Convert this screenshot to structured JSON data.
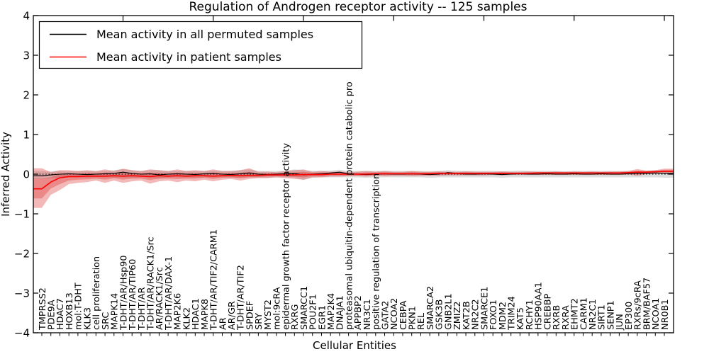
{
  "chart_data": {
    "type": "line",
    "title": "Regulation of Androgen receptor activity -- 125 samples",
    "xlabel": "Cellular Entities",
    "ylabel": "Inferred Activity",
    "ylim": [
      -4,
      4
    ],
    "yticks": [
      4,
      3,
      2,
      1,
      0,
      -1,
      -2,
      -3,
      -4
    ],
    "grid": false,
    "legend_position": "upper left",
    "zero_reference_line": "dotted black at y=0",
    "x_tick_label_style": "rotated 90deg, anchored inside plot above bottom axis",
    "categories": [
      "TMPRSS2",
      "PDE9A",
      "HDAC7",
      "HOXB13",
      "mol:T-DHT",
      "KLK3",
      "cell proliferation",
      "SRC",
      "MAPK14",
      "T-DHT/AR/Hsp90",
      "T-DHT/AR/TIP60",
      "T-DHT/AR",
      "T-DHT/AR/RACK1/Src",
      "AR/RACK1/Src",
      "T-DHT/AR/DAX-1",
      "MAP2K6",
      "KLK2",
      "HDAC1",
      "MAPK8",
      "T-DHT/AR/TIF2/CARM1",
      "AR",
      "AR/GR",
      "T-DHT/AR/TIF2",
      "SPDEF",
      "SRY",
      "MYST2",
      "mol:9cRA",
      "epidermal growth factor receptor activity",
      "RXRG",
      "SMARCC1",
      "POU2F1",
      "EGR1",
      "MAP2K4",
      "DNAJA1",
      "proteasomal ubiquitin-dependent protein catabolic pro",
      "APPBP2",
      "NR3C1",
      "positive regulation of transcription",
      "GATA2",
      "NCOA2",
      "CEBPA",
      "PKN1",
      "REL",
      "SMARCA2",
      "GSK3B",
      "GNB2L1",
      "ZMIZ2",
      "KAT2B",
      "NR2C2",
      "SMARCE1",
      "FOXO1",
      "MDM2",
      "TRIM24",
      "KAT5",
      "RCHY1",
      "HSP90AA1",
      "CREBBP",
      "RXRB",
      "RXRA",
      "EHMT2",
      "CARM1",
      "NR2C1",
      "SIRT1",
      "SENP1",
      "JUN",
      "EP300",
      "RXRs/9cRA",
      "BRM/BAF57",
      "NCOA1",
      "NR0B1"
    ],
    "series": [
      {
        "name": "Mean activity in all permuted samples",
        "color": "#000000",
        "values": [
          -0.04,
          -0.02,
          0,
          0.01,
          0,
          -0.01,
          0,
          0.01,
          0.02,
          0.05,
          0.02,
          0,
          0.01,
          -0.02,
          0,
          0.01,
          0,
          -0.01,
          0.01,
          0.02,
          0,
          -0.01,
          0.01,
          0.03,
          0,
          -0.01,
          0,
          0.01,
          0.02,
          -0.02,
          0,
          0.01,
          0.03,
          0.05,
          0.01,
          0,
          -0.01,
          0,
          0.01,
          0,
          0,
          0.01,
          0,
          -0.01,
          0,
          0.04,
          0.02,
          0,
          0,
          0.01,
          0,
          -0.01,
          0,
          0.01,
          0,
          0,
          0.01,
          0,
          0,
          0.01,
          0,
          0,
          0.01,
          0,
          0,
          0.01,
          0.02,
          0.02,
          0.03,
          0.02
        ]
      },
      {
        "name": "Mean activity in patient samples",
        "color": "#ff0000",
        "values": [
          -0.37,
          -0.2,
          -0.09,
          -0.06,
          -0.06,
          -0.05,
          -0.05,
          -0.05,
          -0.04,
          -0.05,
          -0.04,
          -0.05,
          -0.06,
          -0.04,
          -0.05,
          -0.04,
          -0.05,
          -0.04,
          -0.04,
          -0.05,
          -0.04,
          -0.03,
          -0.04,
          -0.03,
          -0.03,
          -0.02,
          -0.02,
          -0.02,
          -0.02,
          -0.01,
          -0.01,
          -0.01,
          0,
          0,
          0,
          0,
          0,
          0.01,
          0.01,
          0.01,
          0.01,
          0.01,
          0.01,
          0.01,
          0.02,
          0.02,
          0.02,
          0.02,
          0.02,
          0.02,
          0.02,
          0.02,
          0.02,
          0.02,
          0.02,
          0.03,
          0.03,
          0.03,
          0.03,
          0.03,
          0.03,
          0.03,
          0.03,
          0.03,
          0.03,
          0.04,
          0.05,
          0.05,
          0.06,
          0.07
        ]
      }
    ],
    "bands": [
      {
        "series": "Mean activity in all permuted samples",
        "color": "rgba(120,120,120,0.25)",
        "upper": [
          0.08,
          0.07,
          0.08,
          0.07,
          0.08,
          0.08,
          0.07,
          0.08,
          0.1,
          0.13,
          0.1,
          0.08,
          0.1,
          0.1,
          0.08,
          0.08,
          0.08,
          0.08,
          0.08,
          0.09,
          0.08,
          0.08,
          0.1,
          0.12,
          0.08,
          0.08,
          0.08,
          0.09,
          0.12,
          0.1,
          0.08,
          0.08,
          0.09,
          0.11,
          0.08,
          0.08,
          0.08,
          0.08,
          0.08,
          0.08,
          0.08,
          0.08,
          0.08,
          0.07,
          0.08,
          0.1,
          0.08,
          0.08,
          0.08,
          0.08,
          0.08,
          0.07,
          0.08,
          0.09,
          0.08,
          0.08,
          0.08,
          0.08,
          0.07,
          0.08,
          0.08,
          0.08,
          0.08,
          0.08,
          0.08,
          0.08,
          0.08,
          0.09,
          0.1,
          0.09
        ],
        "lower": [
          -0.12,
          -0.1,
          -0.09,
          -0.08,
          -0.08,
          -0.09,
          -0.08,
          -0.08,
          -0.09,
          -0.08,
          -0.09,
          -0.08,
          -0.09,
          -0.11,
          -0.08,
          -0.08,
          -0.08,
          -0.09,
          -0.08,
          -0.08,
          -0.08,
          -0.09,
          -0.09,
          -0.08,
          -0.09,
          -0.09,
          -0.08,
          -0.08,
          -0.09,
          -0.15,
          -0.09,
          -0.08,
          -0.08,
          -0.08,
          -0.08,
          -0.08,
          -0.09,
          -0.08,
          -0.08,
          -0.08,
          -0.08,
          -0.08,
          -0.08,
          -0.09,
          -0.08,
          -0.08,
          -0.08,
          -0.08,
          -0.08,
          -0.08,
          -0.08,
          -0.09,
          -0.08,
          -0.08,
          -0.08,
          -0.08,
          -0.08,
          -0.08,
          -0.08,
          -0.08,
          -0.08,
          -0.08,
          -0.08,
          -0.08,
          -0.08,
          -0.08,
          -0.08,
          -0.08,
          -0.08,
          -0.09
        ]
      },
      {
        "series": "Mean activity in patient samples",
        "color": "rgba(220,38,38,0.33)",
        "upper": [
          0.15,
          0.05,
          0.1,
          0.1,
          0.08,
          0.1,
          0.08,
          0.12,
          0.08,
          0.14,
          0.1,
          0.08,
          0.12,
          0.1,
          0.08,
          0.12,
          0.08,
          0.1,
          0.08,
          0.12,
          0.08,
          0.08,
          0.1,
          0.15,
          0.06,
          0.06,
          0.05,
          0.08,
          0.1,
          0.12,
          0.06,
          0.08,
          0.06,
          0.07,
          0.05,
          0.06,
          0.08,
          0.06,
          0.08,
          0.06,
          0.06,
          0.08,
          0.06,
          0.06,
          0.07,
          0.06,
          0.06,
          0.07,
          0.06,
          0.06,
          0.06,
          0.07,
          0.06,
          0.06,
          0.07,
          0.06,
          0.06,
          0.07,
          0.06,
          0.07,
          0.06,
          0.07,
          0.06,
          0.07,
          0.07,
          0.08,
          0.13,
          0.09,
          0.1,
          0.14
        ],
        "lower": [
          -0.85,
          -0.52,
          -0.4,
          -0.25,
          -0.22,
          -0.2,
          -0.16,
          -0.22,
          -0.16,
          -0.22,
          -0.18,
          -0.16,
          -0.24,
          -0.18,
          -0.16,
          -0.2,
          -0.16,
          -0.18,
          -0.14,
          -0.18,
          -0.14,
          -0.12,
          -0.16,
          -0.12,
          -0.1,
          -0.1,
          -0.08,
          -0.1,
          -0.12,
          -0.14,
          -0.08,
          -0.08,
          -0.06,
          -0.06,
          -0.05,
          -0.05,
          -0.06,
          -0.04,
          -0.05,
          -0.04,
          -0.04,
          -0.05,
          -0.04,
          -0.04,
          -0.04,
          -0.03,
          -0.03,
          -0.03,
          -0.03,
          -0.03,
          -0.02,
          -0.03,
          -0.02,
          -0.02,
          -0.02,
          -0.02,
          -0.02,
          -0.02,
          -0.02,
          -0.02,
          -0.02,
          -0.02,
          -0.02,
          -0.02,
          -0.02,
          -0.01,
          -0.04,
          0,
          0.01,
          0.02
        ],
        "inner_upper": [
          -0.11,
          -0.08,
          0,
          0.02,
          0.01,
          0.03,
          0.02,
          0.04,
          0.02,
          0.05,
          0.03,
          0.02,
          0.03,
          0.03,
          0.02,
          0.04,
          0.02,
          0.03,
          0.02,
          0.04,
          0.02,
          0.03,
          0.03,
          0.06,
          0.02,
          0.02,
          0.02,
          0.03,
          0.04,
          0.06,
          0.03,
          0.04,
          0.03,
          0.04,
          0.03,
          0.03,
          0.04,
          0.04,
          0.05,
          0.04,
          0.04,
          0.05,
          0.04,
          0.04,
          0.05,
          0.04,
          0.04,
          0.05,
          0.04,
          0.04,
          0.04,
          0.05,
          0.04,
          0.04,
          0.05,
          0.05,
          0.05,
          0.05,
          0.05,
          0.05,
          0.05,
          0.05,
          0.05,
          0.05,
          0.05,
          0.06,
          0.09,
          0.07,
          0.08,
          0.11
        ],
        "inner_lower": [
          -0.61,
          -0.36,
          -0.25,
          -0.16,
          -0.14,
          -0.13,
          -0.11,
          -0.14,
          -0.1,
          -0.14,
          -0.11,
          -0.11,
          -0.15,
          -0.11,
          -0.11,
          -0.12,
          -0.11,
          -0.11,
          -0.09,
          -0.12,
          -0.09,
          -0.08,
          -0.1,
          -0.08,
          -0.07,
          -0.06,
          -0.05,
          -0.06,
          -0.07,
          -0.08,
          -0.05,
          -0.05,
          -0.03,
          -0.03,
          -0.03,
          -0.03,
          -0.03,
          -0.02,
          -0.02,
          -0.02,
          -0.02,
          -0.02,
          -0.02,
          -0.02,
          -0.01,
          -0.01,
          -0.01,
          -0.01,
          -0.01,
          -0.01,
          0,
          -0.01,
          0,
          0,
          0,
          0.01,
          0.01,
          0.01,
          0.01,
          0.01,
          0.01,
          0.01,
          0.01,
          0.01,
          0.01,
          0.02,
          0.01,
          0.03,
          0.04,
          0.05
        ]
      }
    ]
  }
}
